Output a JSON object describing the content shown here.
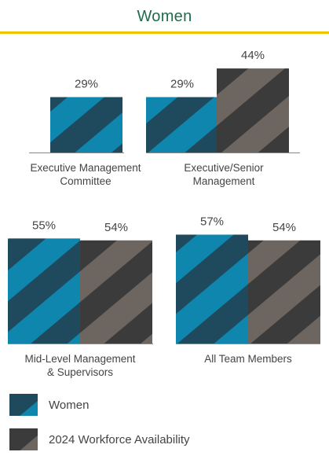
{
  "title": "Women",
  "colors": {
    "title": "#1e6b4d",
    "rule": "#f2c300",
    "women_light": "#0e86ae",
    "women_dark": "#1f4a5e",
    "workforce_light": "#6c6560",
    "workforce_dark": "#3b3b3b"
  },
  "chart_data": {
    "type": "bar",
    "categories": [
      "Executive Management Committee",
      "Executive/Senior Management",
      "Mid-Level Management & Supervisors",
      "All Team Members"
    ],
    "series": [
      {
        "name": "Women",
        "values": [
          29,
          29,
          55,
          57
        ],
        "labels": [
          "29%",
          "29%",
          "55%",
          "57%"
        ]
      },
      {
        "name": "2024 Workforce Availability",
        "values": [
          null,
          44,
          54,
          54
        ],
        "labels": [
          "",
          "44%",
          "54%",
          "54%"
        ]
      }
    ],
    "unit": "%",
    "grid": false,
    "legend_position": "bottom-left"
  },
  "category_labels": [
    [
      "Executive Management",
      "Committee"
    ],
    [
      "Executive/Senior",
      "Management"
    ],
    [
      "Mid-Level Management",
      "& Supervisors"
    ],
    [
      "All Team Members"
    ]
  ],
  "legend": {
    "items": [
      {
        "label": "Women"
      },
      {
        "label": "2024 Workforce Availability"
      }
    ]
  }
}
